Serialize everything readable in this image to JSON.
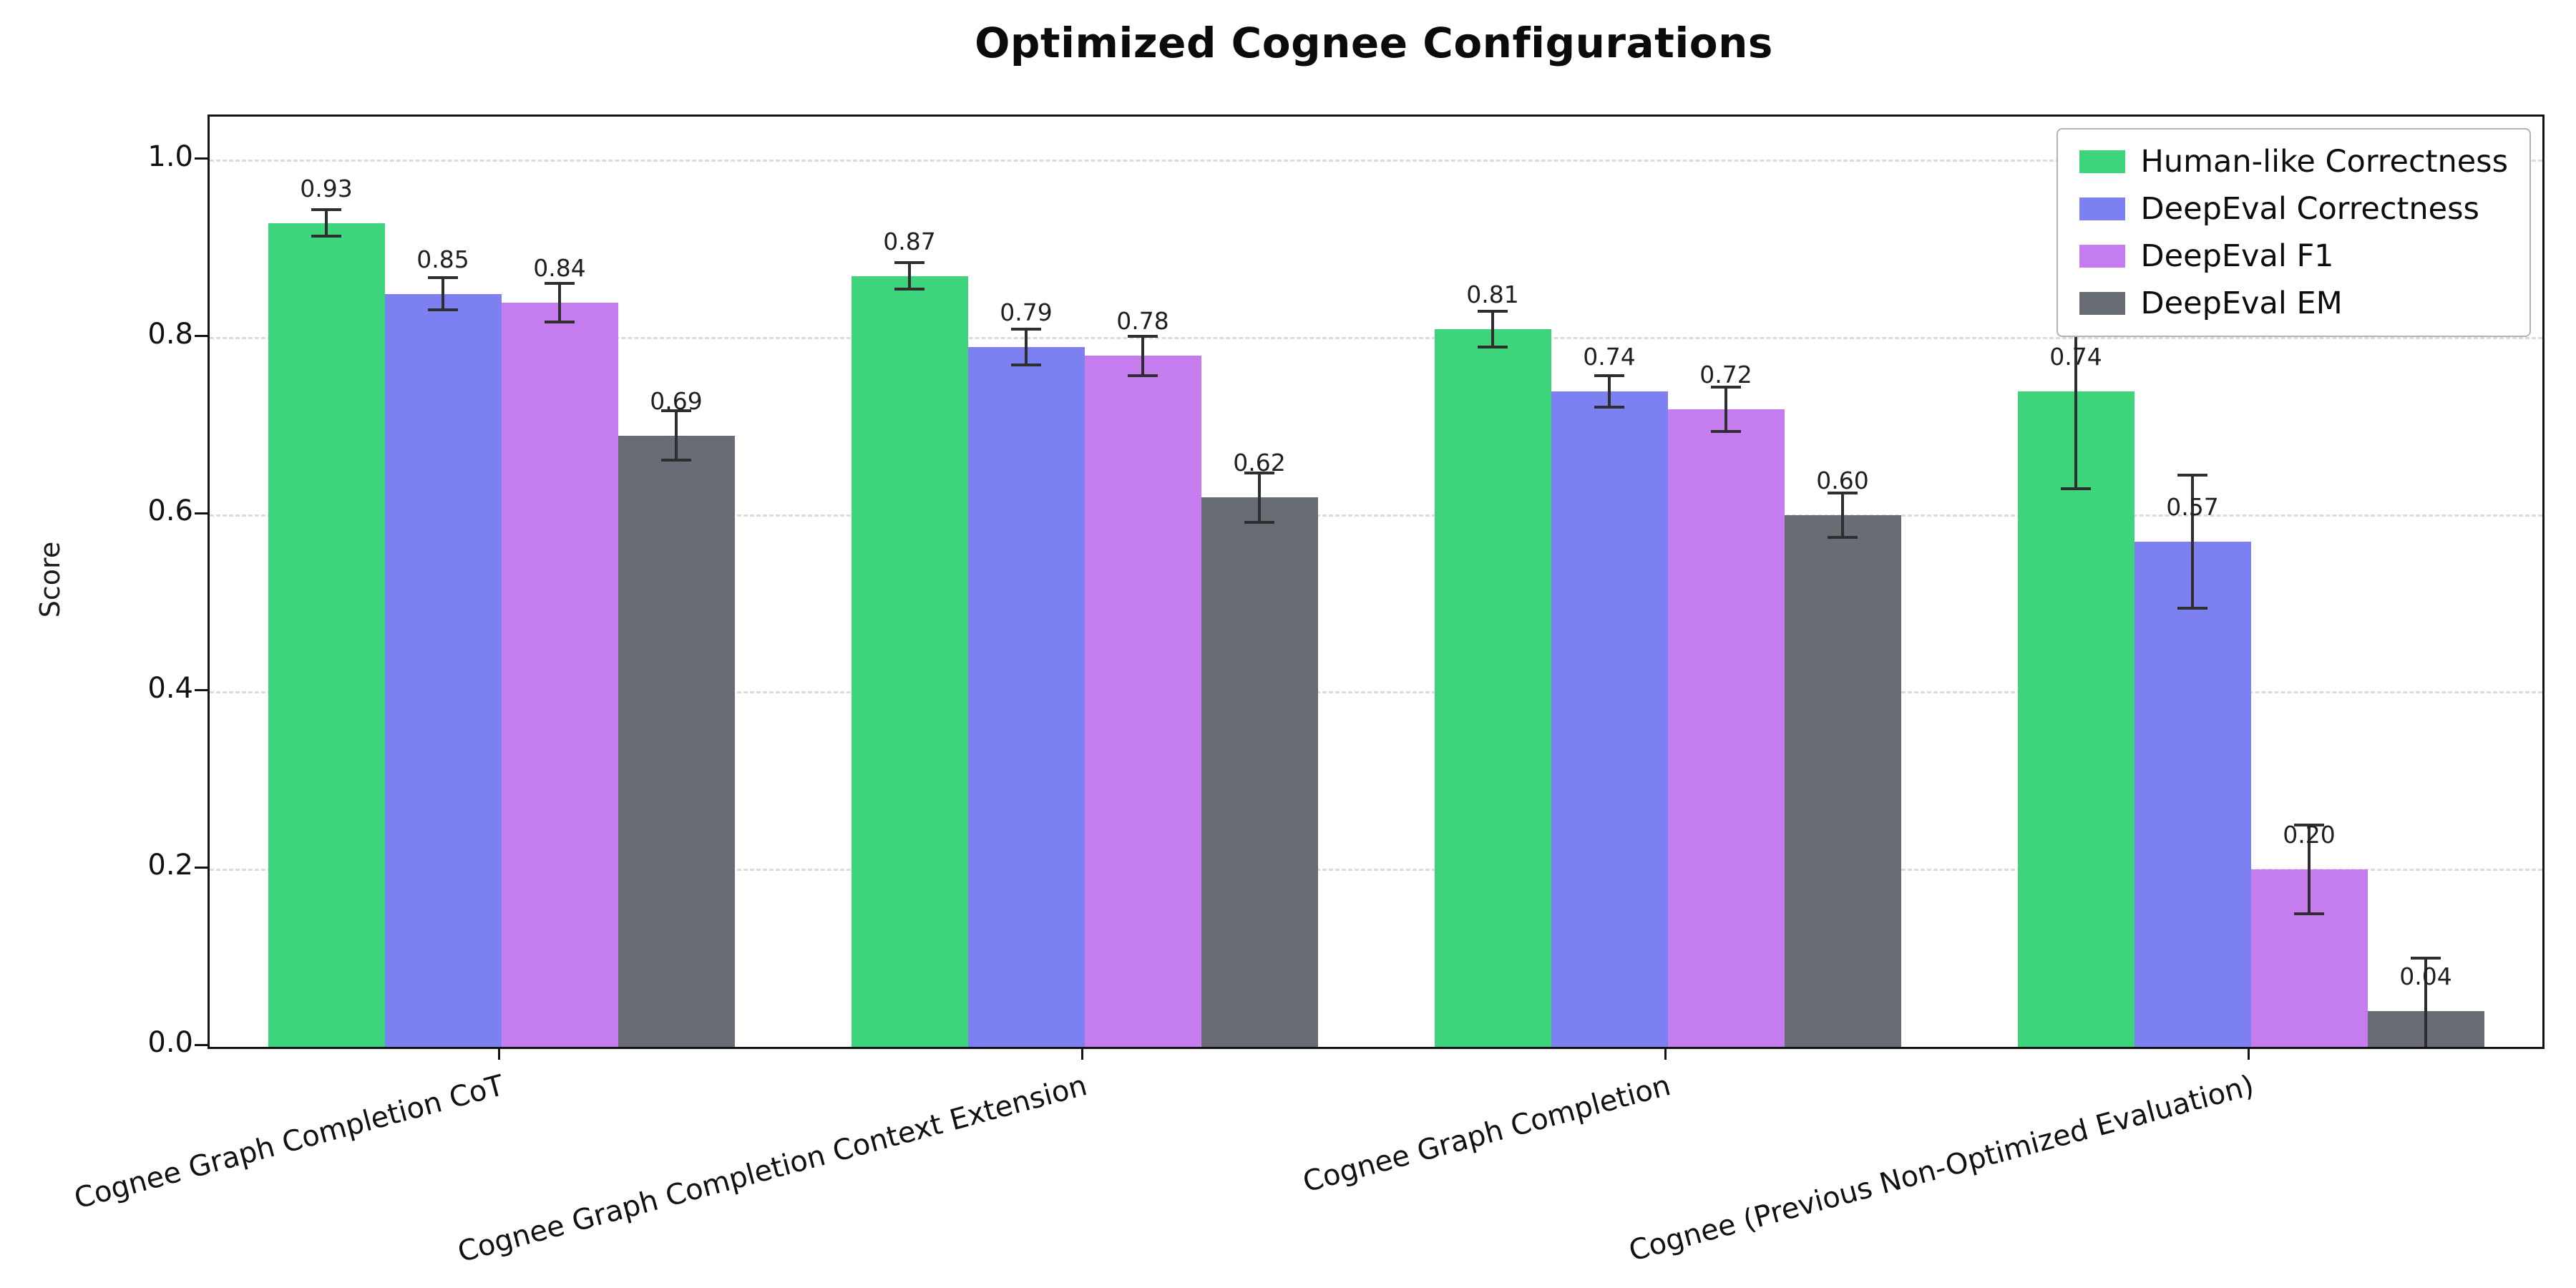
{
  "chart_data": {
    "type": "bar",
    "title": "Optimized Cognee Configurations",
    "xlabel": "",
    "ylabel": "Score",
    "ylim": [
      0,
      1.05
    ],
    "yticks": [
      "0.0",
      "0.2",
      "0.4",
      "0.6",
      "0.8",
      "1.0"
    ],
    "grid": "horizontal dashed",
    "legend_position": "upper right",
    "errorbar_color": "#2e2e2e",
    "categories": [
      "Cognee Graph Completion CoT",
      "Cognee Graph Completion Context Extension",
      "Cognee Graph Completion",
      "Cognee (Previous Non-Optimized Evaluation)"
    ],
    "series": [
      {
        "name": "Human-like Correctness",
        "color": "#3ed47c",
        "values": [
          0.93,
          0.87,
          0.81,
          0.74
        ],
        "errors": [
          0.015,
          0.015,
          0.02,
          0.11
        ],
        "value_labels": [
          "0.93",
          "0.87",
          "0.81",
          "0.74"
        ]
      },
      {
        "name": "DeepEval Correctness",
        "color": "#7c80f0",
        "values": [
          0.85,
          0.79,
          0.74,
          0.57
        ],
        "errors": [
          0.018,
          0.02,
          0.018,
          0.075
        ],
        "value_labels": [
          "0.85",
          "0.79",
          "0.74",
          "0.57"
        ]
      },
      {
        "name": "DeepEval F1",
        "color": "#c57cee",
        "values": [
          0.84,
          0.78,
          0.72,
          0.2
        ],
        "errors": [
          0.022,
          0.022,
          0.025,
          0.05
        ],
        "value_labels": [
          "0.84",
          "0.78",
          "0.72",
          "0.20"
        ]
      },
      {
        "name": "DeepEval EM",
        "color": "#686d75",
        "values": [
          0.69,
          0.62,
          0.6,
          0.04
        ],
        "errors": [
          0.028,
          0.028,
          0.025,
          0.06
        ],
        "value_labels": [
          "0.69",
          "0.62",
          "0.60",
          "0.04"
        ]
      }
    ]
  }
}
